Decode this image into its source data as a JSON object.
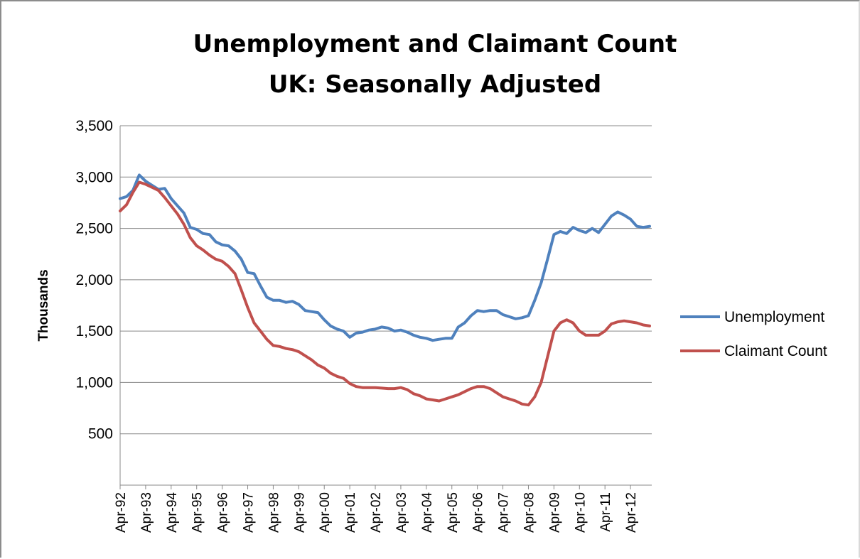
{
  "chart_data": {
    "type": "line",
    "title": "Unemployment and Claimant Count",
    "subtitle": "UK: Seasonally Adjusted",
    "xlabel": "",
    "ylabel": "Thousands",
    "ylim": [
      0,
      3500
    ],
    "yticks": [
      500,
      1000,
      1500,
      2000,
      2500,
      3000,
      3500
    ],
    "ytick_labels": [
      "500",
      "1,000",
      "1,500",
      "2,000",
      "2,500",
      "3,000",
      "3,500"
    ],
    "xlim": [
      "1992-04",
      "2013-02"
    ],
    "xtick_labels": [
      "Apr-92",
      "Apr-93",
      "Apr-94",
      "Apr-95",
      "Apr-96",
      "Apr-97",
      "Apr-98",
      "Apr-99",
      "Apr-00",
      "Apr-01",
      "Apr-02",
      "Apr-03",
      "Apr-04",
      "Apr-05",
      "Apr-06",
      "Apr-07",
      "Apr-08",
      "Apr-09",
      "Apr-10",
      "Apr-11",
      "Apr-12"
    ],
    "xtick_dates": [
      "1992-04",
      "1993-04",
      "1994-04",
      "1995-04",
      "1996-04",
      "1997-04",
      "1998-04",
      "1999-04",
      "2000-04",
      "2001-04",
      "2002-04",
      "2003-04",
      "2004-04",
      "2005-04",
      "2006-04",
      "2007-04",
      "2008-04",
      "2009-04",
      "2010-04",
      "2011-04",
      "2012-04"
    ],
    "grid": "horizontal",
    "legend_position": "right",
    "series": [
      {
        "name": "Unemployment",
        "color": "#4f81bd",
        "points": [
          [
            "1992-04",
            2790
          ],
          [
            "1992-07",
            2810
          ],
          [
            "1992-10",
            2870
          ],
          [
            "1993-01",
            3020
          ],
          [
            "1993-04",
            2960
          ],
          [
            "1993-07",
            2920
          ],
          [
            "1993-10",
            2880
          ],
          [
            "1994-01",
            2890
          ],
          [
            "1994-04",
            2790
          ],
          [
            "1994-07",
            2720
          ],
          [
            "1994-10",
            2650
          ],
          [
            "1995-01",
            2510
          ],
          [
            "1995-04",
            2490
          ],
          [
            "1995-07",
            2450
          ],
          [
            "1995-10",
            2440
          ],
          [
            "1996-01",
            2370
          ],
          [
            "1996-04",
            2340
          ],
          [
            "1996-07",
            2330
          ],
          [
            "1996-10",
            2280
          ],
          [
            "1997-01",
            2200
          ],
          [
            "1997-04",
            2070
          ],
          [
            "1997-07",
            2060
          ],
          [
            "1997-10",
            1940
          ],
          [
            "1998-01",
            1830
          ],
          [
            "1998-04",
            1800
          ],
          [
            "1998-07",
            1800
          ],
          [
            "1998-10",
            1780
          ],
          [
            "1999-01",
            1790
          ],
          [
            "1999-04",
            1760
          ],
          [
            "1999-07",
            1700
          ],
          [
            "1999-10",
            1690
          ],
          [
            "2000-01",
            1680
          ],
          [
            "2000-04",
            1610
          ],
          [
            "2000-07",
            1550
          ],
          [
            "2000-10",
            1520
          ],
          [
            "2001-01",
            1500
          ],
          [
            "2001-04",
            1440
          ],
          [
            "2001-07",
            1480
          ],
          [
            "2001-10",
            1490
          ],
          [
            "2002-01",
            1510
          ],
          [
            "2002-04",
            1520
          ],
          [
            "2002-07",
            1540
          ],
          [
            "2002-10",
            1530
          ],
          [
            "2003-01",
            1500
          ],
          [
            "2003-04",
            1510
          ],
          [
            "2003-07",
            1490
          ],
          [
            "2003-10",
            1460
          ],
          [
            "2004-01",
            1440
          ],
          [
            "2004-04",
            1430
          ],
          [
            "2004-07",
            1410
          ],
          [
            "2004-10",
            1420
          ],
          [
            "2005-01",
            1430
          ],
          [
            "2005-04",
            1430
          ],
          [
            "2005-07",
            1540
          ],
          [
            "2005-10",
            1580
          ],
          [
            "2006-01",
            1650
          ],
          [
            "2006-04",
            1700
          ],
          [
            "2006-07",
            1690
          ],
          [
            "2006-10",
            1700
          ],
          [
            "2007-01",
            1700
          ],
          [
            "2007-04",
            1660
          ],
          [
            "2007-07",
            1640
          ],
          [
            "2007-10",
            1620
          ],
          [
            "2008-01",
            1630
          ],
          [
            "2008-04",
            1650
          ],
          [
            "2008-07",
            1800
          ],
          [
            "2008-10",
            1970
          ],
          [
            "2009-01",
            2200
          ],
          [
            "2009-04",
            2440
          ],
          [
            "2009-07",
            2470
          ],
          [
            "2009-10",
            2450
          ],
          [
            "2010-01",
            2510
          ],
          [
            "2010-04",
            2480
          ],
          [
            "2010-07",
            2460
          ],
          [
            "2010-10",
            2500
          ],
          [
            "2011-01",
            2460
          ],
          [
            "2011-04",
            2540
          ],
          [
            "2011-07",
            2620
          ],
          [
            "2011-10",
            2660
          ],
          [
            "2012-01",
            2630
          ],
          [
            "2012-04",
            2590
          ],
          [
            "2012-07",
            2520
          ],
          [
            "2012-10",
            2510
          ],
          [
            "2013-01",
            2520
          ]
        ]
      },
      {
        "name": "Claimant Count",
        "color": "#c0504d",
        "points": [
          [
            "1992-04",
            2670
          ],
          [
            "1992-07",
            2730
          ],
          [
            "1992-10",
            2850
          ],
          [
            "1993-01",
            2950
          ],
          [
            "1993-04",
            2930
          ],
          [
            "1993-07",
            2900
          ],
          [
            "1993-10",
            2870
          ],
          [
            "1994-01",
            2800
          ],
          [
            "1994-04",
            2720
          ],
          [
            "1994-07",
            2640
          ],
          [
            "1994-10",
            2540
          ],
          [
            "1995-01",
            2410
          ],
          [
            "1995-04",
            2330
          ],
          [
            "1995-07",
            2290
          ],
          [
            "1995-10",
            2240
          ],
          [
            "1996-01",
            2200
          ],
          [
            "1996-04",
            2180
          ],
          [
            "1996-07",
            2130
          ],
          [
            "1996-10",
            2060
          ],
          [
            "1997-01",
            1900
          ],
          [
            "1997-04",
            1730
          ],
          [
            "1997-07",
            1580
          ],
          [
            "1997-10",
            1500
          ],
          [
            "1998-01",
            1420
          ],
          [
            "1998-04",
            1360
          ],
          [
            "1998-07",
            1350
          ],
          [
            "1998-10",
            1330
          ],
          [
            "1999-01",
            1320
          ],
          [
            "1999-04",
            1300
          ],
          [
            "1999-07",
            1260
          ],
          [
            "1999-10",
            1220
          ],
          [
            "2000-01",
            1170
          ],
          [
            "2000-04",
            1140
          ],
          [
            "2000-07",
            1090
          ],
          [
            "2000-10",
            1060
          ],
          [
            "2001-01",
            1040
          ],
          [
            "2001-04",
            990
          ],
          [
            "2001-07",
            960
          ],
          [
            "2001-10",
            950
          ],
          [
            "2002-01",
            950
          ],
          [
            "2002-04",
            950
          ],
          [
            "2002-07",
            945
          ],
          [
            "2002-10",
            940
          ],
          [
            "2003-01",
            940
          ],
          [
            "2003-04",
            950
          ],
          [
            "2003-07",
            930
          ],
          [
            "2003-10",
            890
          ],
          [
            "2004-01",
            870
          ],
          [
            "2004-04",
            840
          ],
          [
            "2004-07",
            830
          ],
          [
            "2004-10",
            820
          ],
          [
            "2005-01",
            840
          ],
          [
            "2005-04",
            860
          ],
          [
            "2005-07",
            880
          ],
          [
            "2005-10",
            910
          ],
          [
            "2006-01",
            940
          ],
          [
            "2006-04",
            960
          ],
          [
            "2006-07",
            960
          ],
          [
            "2006-10",
            940
          ],
          [
            "2007-01",
            900
          ],
          [
            "2007-04",
            860
          ],
          [
            "2007-07",
            840
          ],
          [
            "2007-10",
            820
          ],
          [
            "2008-01",
            790
          ],
          [
            "2008-04",
            780
          ],
          [
            "2008-07",
            860
          ],
          [
            "2008-10",
            1000
          ],
          [
            "2009-01",
            1250
          ],
          [
            "2009-04",
            1500
          ],
          [
            "2009-07",
            1580
          ],
          [
            "2009-10",
            1610
          ],
          [
            "2010-01",
            1580
          ],
          [
            "2010-04",
            1500
          ],
          [
            "2010-07",
            1460
          ],
          [
            "2010-10",
            1460
          ],
          [
            "2011-01",
            1460
          ],
          [
            "2011-04",
            1500
          ],
          [
            "2011-07",
            1570
          ],
          [
            "2011-10",
            1590
          ],
          [
            "2012-01",
            1600
          ],
          [
            "2012-04",
            1590
          ],
          [
            "2012-07",
            1580
          ],
          [
            "2012-10",
            1560
          ],
          [
            "2013-01",
            1550
          ]
        ]
      }
    ]
  }
}
